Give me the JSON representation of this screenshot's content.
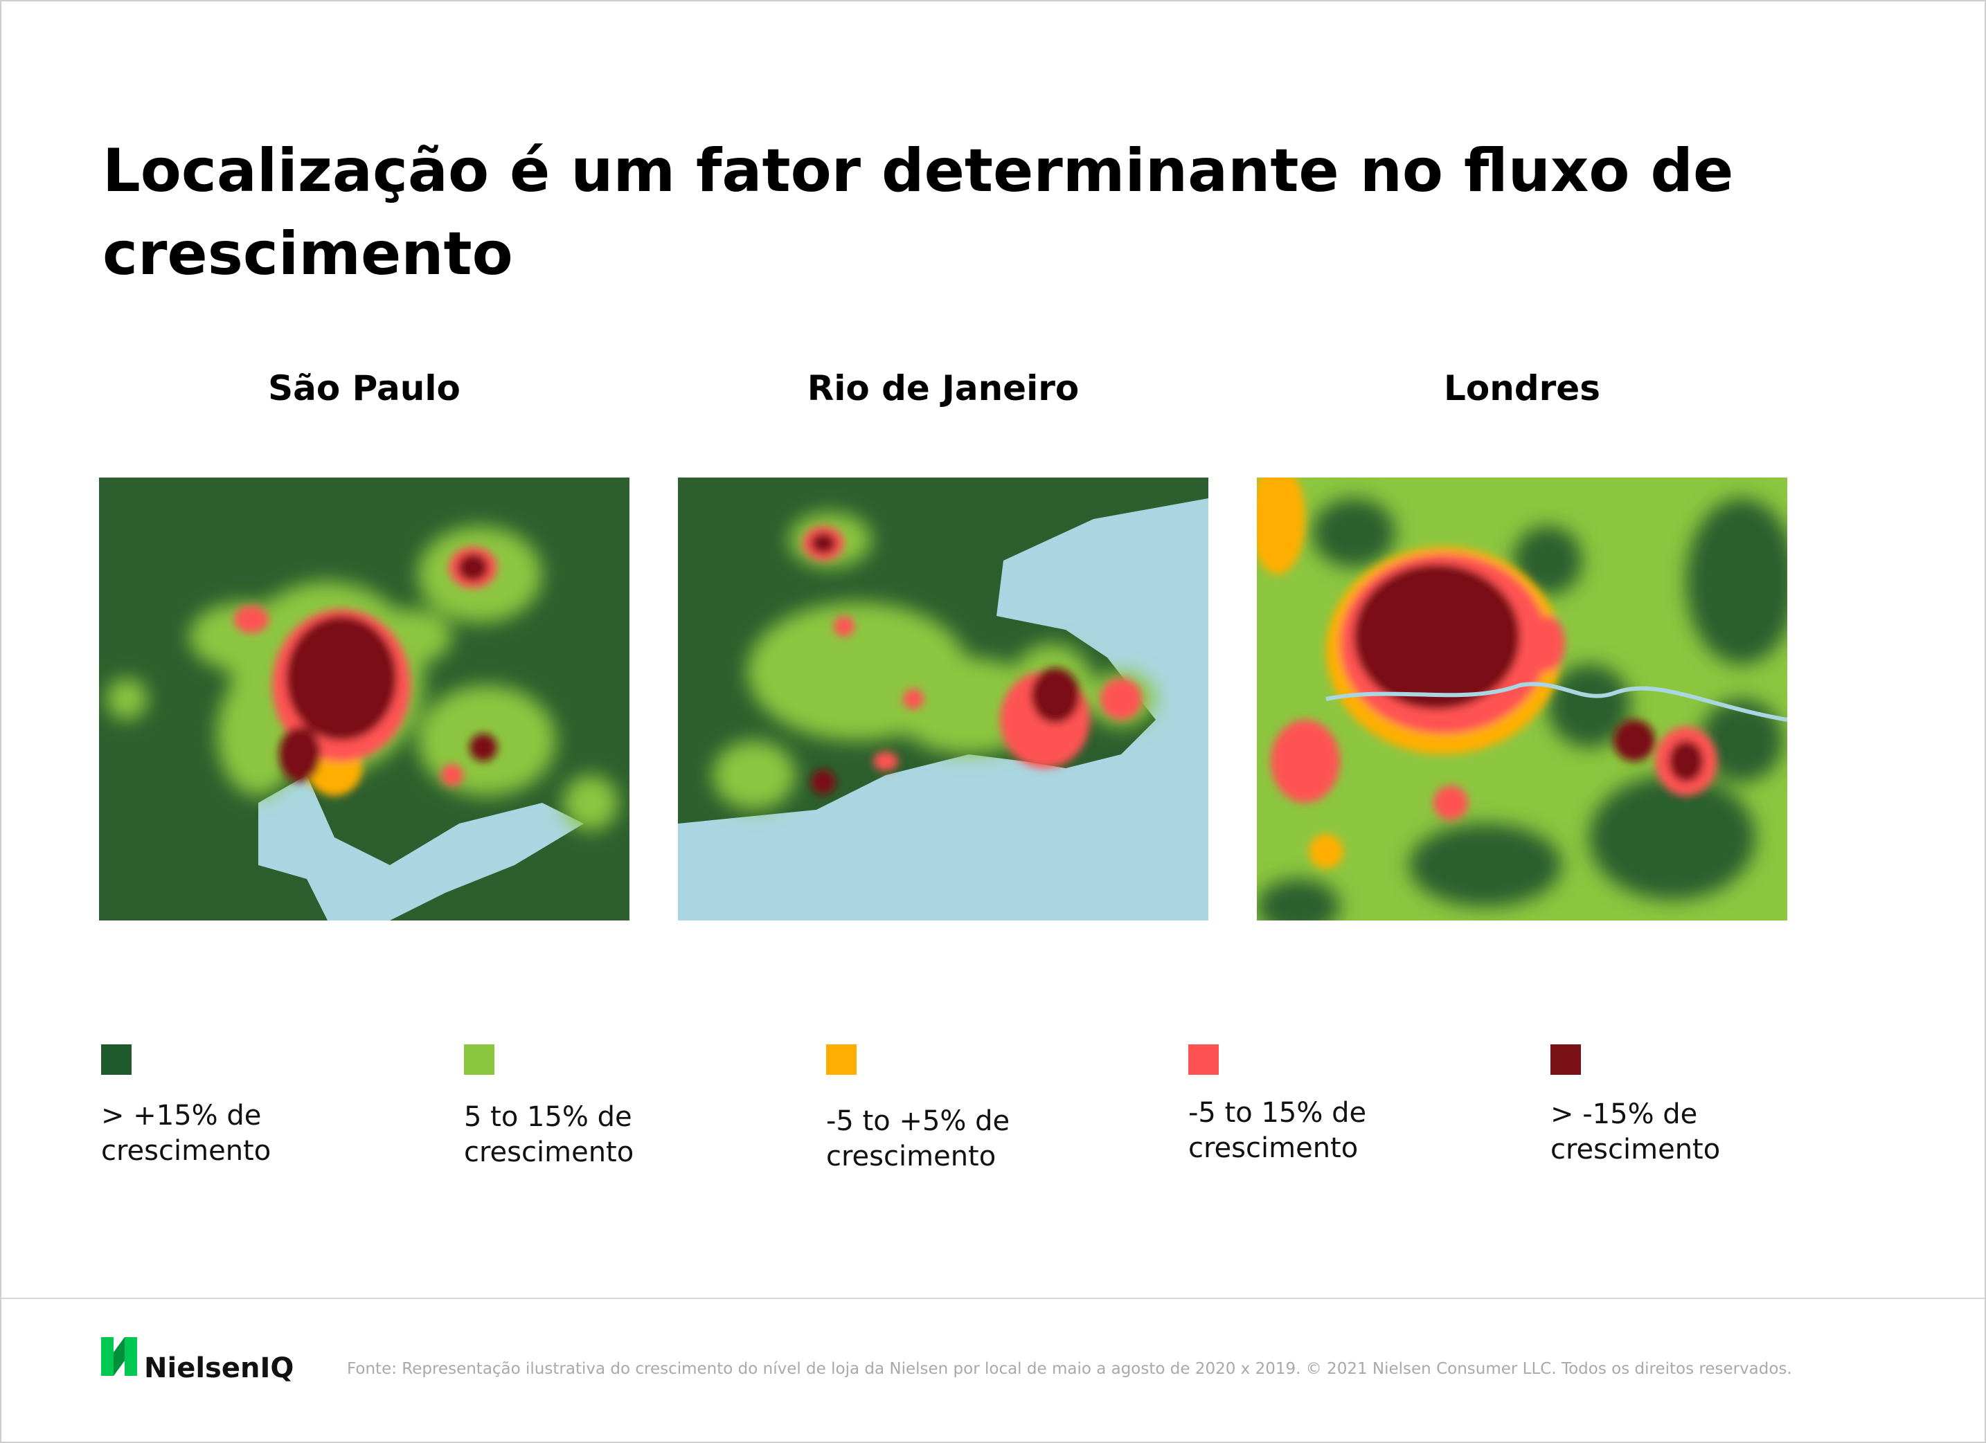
{
  "header": {
    "title": "Localização é um fator determinante no fluxo de crescimento"
  },
  "maps": [
    {
      "title": "São Paulo"
    },
    {
      "title": "Rio de Janeiro"
    },
    {
      "title": "Londres"
    }
  ],
  "legend": [
    {
      "color": "#1f5a2c",
      "label": "> +15% de crescimento"
    },
    {
      "color": "#8cc63f",
      "label": "5 to 15% de crescimento"
    },
    {
      "color": "#ffae00",
      "label": "-5 to +5% de crescimento"
    },
    {
      "color": "#ff5252",
      "label": "-5 to 15% de crescimento"
    },
    {
      "color": "#7a1116",
      "label": "> -15% de crescimento"
    }
  ],
  "footer": {
    "logo": "NielsenIQ",
    "source": "Fonte: Representação ilustrativa do crescimento do nível de loja da Nielsen por local de maio a agosto de 2020 x 2019. © 2021 Nielsen Consumer LLC. Todos os direitos reservados."
  }
}
